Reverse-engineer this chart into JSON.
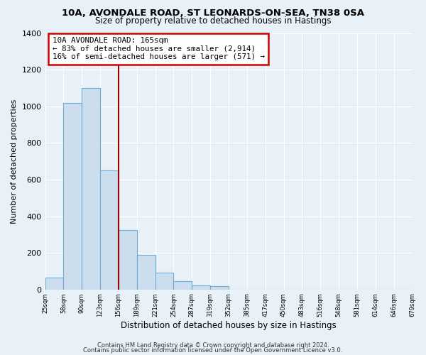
{
  "title1": "10A, AVONDALE ROAD, ST LEONARDS-ON-SEA, TN38 0SA",
  "title2": "Size of property relative to detached houses in Hastings",
  "xlabel": "Distribution of detached houses by size in Hastings",
  "ylabel": "Number of detached properties",
  "bar_values": [
    65,
    1020,
    1100,
    650,
    325,
    190,
    90,
    47,
    23,
    18,
    0,
    0,
    0,
    0,
    0,
    0,
    0,
    0,
    0,
    0
  ],
  "bin_labels": [
    "25sqm",
    "58sqm",
    "90sqm",
    "123sqm",
    "156sqm",
    "189sqm",
    "221sqm",
    "254sqm",
    "287sqm",
    "319sqm",
    "352sqm",
    "385sqm",
    "417sqm",
    "450sqm",
    "483sqm",
    "516sqm",
    "548sqm",
    "581sqm",
    "614sqm",
    "646sqm",
    "679sqm"
  ],
  "bar_color": "#ccdded",
  "bar_edge_color": "#6aaed6",
  "vline_x": 4.0,
  "vline_color": "#990000",
  "annotation_title": "10A AVONDALE ROAD: 165sqm",
  "annotation_line1": "← 83% of detached houses are smaller (2,914)",
  "annotation_line2": "16% of semi-detached houses are larger (571) →",
  "annotation_box_color": "#ffffff",
  "annotation_box_edge": "#cc0000",
  "ylim": [
    0,
    1400
  ],
  "yticks": [
    0,
    200,
    400,
    600,
    800,
    1000,
    1200,
    1400
  ],
  "footer1": "Contains HM Land Registry data © Crown copyright and database right 2024.",
  "footer2": "Contains public sector information licensed under the Open Government Licence v3.0.",
  "bg_color": "#e8f0f8",
  "grid_color": "#ffffff",
  "num_bins": 20
}
